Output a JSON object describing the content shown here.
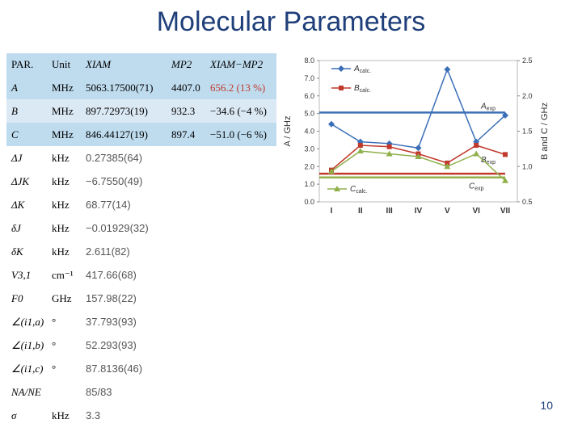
{
  "title": "Molecular Parameters",
  "page_number": "10",
  "table": {
    "header": [
      "PAR.",
      "Unit",
      "XIAM",
      "MP2",
      "XIAM−MP2"
    ],
    "rows": [
      {
        "par": "A",
        "unit": "MHz",
        "xiam": "5063.17500(71)",
        "mp2": "4407.0",
        "diff": "656.2 (13 %)"
      },
      {
        "par": "B",
        "unit": "MHz",
        "xiam": "897.72973(19)",
        "mp2": "932.3",
        "diff": "−34.6 (−4 %)"
      },
      {
        "par": "C",
        "unit": "MHz",
        "xiam": "846.44127(19)",
        "mp2": "897.4",
        "diff": "−51.0 (−6 %)"
      },
      {
        "par": "ΔJ",
        "unit": "kHz",
        "xiam": "0.27385(64)",
        "mp2": "",
        "diff": ""
      },
      {
        "par": "ΔJK",
        "unit": "kHz",
        "xiam": "−6.7550(49)",
        "mp2": "",
        "diff": ""
      },
      {
        "par": "ΔK",
        "unit": "kHz",
        "xiam": "68.77(14)",
        "mp2": "",
        "diff": ""
      },
      {
        "par": "δJ",
        "unit": "kHz",
        "xiam": "−0.01929(32)",
        "mp2": "",
        "diff": ""
      },
      {
        "par": "δK",
        "unit": "kHz",
        "xiam": "2.611(82)",
        "mp2": "",
        "diff": ""
      },
      {
        "par": "V3,1",
        "unit": "cm⁻¹",
        "xiam": "417.66(68)",
        "mp2": "",
        "diff": ""
      },
      {
        "par": "F0",
        "unit": "GHz",
        "xiam": "157.98(22)",
        "mp2": "",
        "diff": ""
      },
      {
        "par": "∠(i1,a)",
        "unit": "°",
        "xiam": "37.793(93)",
        "mp2": "",
        "diff": ""
      },
      {
        "par": "∠(i1,b)",
        "unit": "°",
        "xiam": "52.293(93)",
        "mp2": "",
        "diff": ""
      },
      {
        "par": "∠(i1,c)",
        "unit": "°",
        "xiam": "87.8136(46)",
        "mp2": "",
        "diff": ""
      },
      {
        "par": "NA/NE",
        "unit": "",
        "xiam": "85/83",
        "mp2": "",
        "diff": ""
      },
      {
        "par": "σ",
        "unit": "kHz",
        "xiam": "3.3",
        "mp2": "",
        "diff": ""
      }
    ]
  },
  "chart_data": {
    "type": "line",
    "categories": [
      "I",
      "II",
      "III",
      "IV",
      "V",
      "VI",
      "VII"
    ],
    "y_left": {
      "label": "A / GHz",
      "range": [
        0.0,
        8.0
      ],
      "ticks": [
        "0.0",
        "1.0",
        "2.0",
        "3.0",
        "4.0",
        "5.0",
        "6.0",
        "7.0",
        "8.0"
      ]
    },
    "y_right": {
      "label": "B and C / GHz",
      "range": [
        0.5,
        2.5
      ],
      "ticks": [
        "0.5",
        "1.0",
        "1.5",
        "2.0",
        "2.5"
      ]
    },
    "series": [
      {
        "name": "A calc.",
        "axis": "left",
        "color": "#3a6fb8",
        "marker": "diamond",
        "values": [
          4.4,
          3.4,
          3.3,
          3.05,
          7.5,
          3.4,
          4.9
        ]
      },
      {
        "name": "B calc.",
        "axis": "right",
        "color": "#c0392b",
        "marker": "square",
        "values": [
          0.95,
          1.3,
          1.28,
          1.18,
          1.05,
          1.3,
          1.17
        ]
      },
      {
        "name": "C calc.",
        "axis": "right",
        "color": "#8fb04a",
        "marker": "triangle",
        "values": [
          0.93,
          1.22,
          1.18,
          1.14,
          1.0,
          1.18,
          0.8
        ]
      }
    ],
    "reference_lines": [
      {
        "name": "A exp",
        "axis": "left",
        "value": 5.06,
        "color": "#3a6fb8"
      },
      {
        "name": "B exp",
        "axis": "right",
        "value": 0.898,
        "color": "#c0392b"
      },
      {
        "name": "C exp",
        "axis": "right",
        "value": 0.846,
        "color": "#8fb04a"
      }
    ],
    "legend": [
      "A calc.",
      "B calc.",
      "C calc."
    ],
    "grid": false
  }
}
